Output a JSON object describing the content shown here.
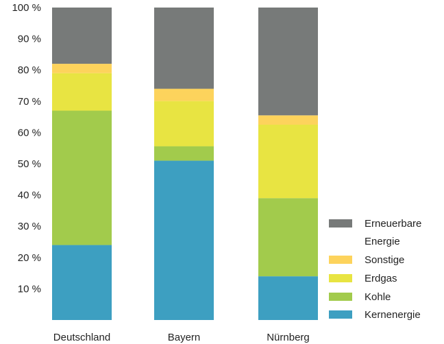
{
  "chart_data": {
    "type": "bar",
    "stacked": true,
    "categories": [
      "Deutschland",
      "Bayern",
      "Nürnberg"
    ],
    "ylim": [
      0,
      100
    ],
    "yticks": [
      {
        "value": 10,
        "label": "10 %"
      },
      {
        "value": 20,
        "label": "20 %"
      },
      {
        "value": 30,
        "label": "30 %"
      },
      {
        "value": 40,
        "label": "40 %"
      },
      {
        "value": 50,
        "label": "50 %"
      },
      {
        "value": 60,
        "label": "60 %"
      },
      {
        "value": 70,
        "label": "70 %"
      },
      {
        "value": 80,
        "label": "80 %"
      },
      {
        "value": 90,
        "label": "90 %"
      },
      {
        "value": 100,
        "label": "100 %"
      }
    ],
    "grid": false,
    "legend_position": "bottom-right",
    "series": [
      {
        "name": "Kernenergie",
        "color": "#3d9fc1",
        "values": [
          24,
          51,
          14
        ]
      },
      {
        "name": "Kohle",
        "color": "#a2cb4c",
        "values": [
          43,
          4.6,
          25
        ]
      },
      {
        "name": "Erdgas",
        "color": "#e8e442",
        "values": [
          12,
          14.5,
          23.5
        ]
      },
      {
        "name": "Sonstige",
        "color": "#fdd35c",
        "values": [
          3,
          3.9,
          3
        ]
      },
      {
        "name": "Erneuerbare Energie",
        "color": "#777a79",
        "values": [
          18,
          26,
          34.5
        ]
      }
    ]
  }
}
